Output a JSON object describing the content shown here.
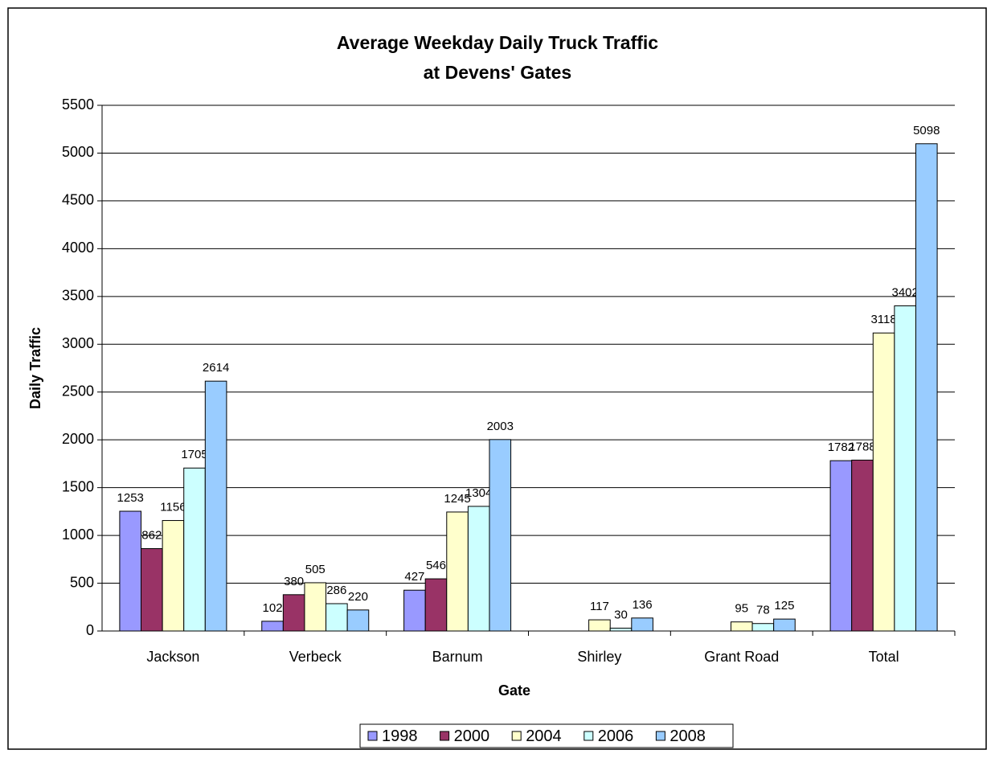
{
  "chart_data": {
    "type": "bar",
    "title": [
      "Average Weekday Daily Truck Traffic",
      "at Devens' Gates"
    ],
    "x_label": "Gate",
    "y_label": "Daily Traffic",
    "categories": [
      "Jackson",
      "Verbeck",
      "Barnum",
      "Shirley",
      "Grant Road",
      "Total"
    ],
    "series": [
      {
        "name": "1998",
        "color": "#9999ff",
        "values": [
          1253,
          102,
          427,
          null,
          null,
          1782
        ]
      },
      {
        "name": "2000",
        "color": "#993366",
        "values": [
          862,
          380,
          546,
          null,
          null,
          1788
        ]
      },
      {
        "name": "2004",
        "color": "#ffffcc",
        "values": [
          1156,
          505,
          1245,
          117,
          95,
          3118
        ]
      },
      {
        "name": "2006",
        "color": "#ccffff",
        "values": [
          1705,
          286,
          1304,
          30,
          78,
          3402
        ]
      },
      {
        "name": "2008",
        "color": "#99ccff",
        "values": [
          2614,
          220,
          2003,
          136,
          125,
          5098
        ]
      }
    ],
    "ylim": [
      0,
      5500
    ],
    "yticks": [
      0,
      500,
      1000,
      1500,
      2000,
      2500,
      3000,
      3500,
      4000,
      4500,
      5000,
      5500
    ],
    "grid": true,
    "legend": "bottom"
  }
}
